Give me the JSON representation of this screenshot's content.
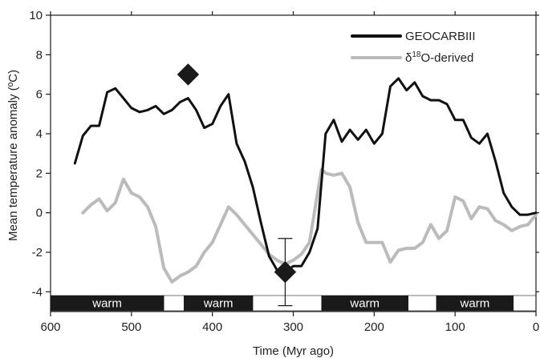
{
  "chart_data": {
    "type": "line",
    "xlabel": "Time (Myr ago)",
    "ylabel": "Mean temperature anomaly (ºC)",
    "xlim": [
      600,
      0
    ],
    "ylim": [
      -5,
      10
    ],
    "x_ticks": [
      600,
      500,
      400,
      300,
      200,
      100,
      0
    ],
    "y_ticks": [
      -4,
      -2,
      0,
      2,
      4,
      6,
      8,
      10
    ],
    "grid": false,
    "legend_position": "top-right",
    "series": [
      {
        "name": "GEOCARBIII",
        "color": "#111111",
        "x": [
          570,
          560,
          550,
          540,
          530,
          520,
          510,
          500,
          490,
          480,
          470,
          460,
          450,
          440,
          430,
          420,
          410,
          400,
          390,
          380,
          370,
          360,
          350,
          340,
          330,
          320,
          310,
          300,
          290,
          280,
          270,
          260,
          250,
          240,
          230,
          220,
          210,
          200,
          190,
          180,
          170,
          160,
          150,
          140,
          130,
          120,
          110,
          100,
          90,
          80,
          70,
          60,
          50,
          40,
          30,
          20,
          10,
          0
        ],
        "values": [
          2.5,
          3.9,
          4.4,
          4.4,
          6.1,
          6.3,
          5.8,
          5.3,
          5.1,
          5.2,
          5.4,
          5.0,
          5.2,
          5.6,
          5.8,
          5.2,
          4.3,
          4.5,
          5.4,
          6.0,
          3.5,
          2.6,
          1.3,
          -0.5,
          -2.2,
          -2.9,
          -3.0,
          -2.7,
          -2.7,
          -2.0,
          -0.8,
          4.0,
          4.7,
          3.6,
          4.2,
          3.7,
          4.2,
          3.5,
          4.0,
          6.4,
          6.8,
          6.2,
          6.6,
          5.9,
          5.7,
          5.7,
          5.5,
          4.7,
          4.7,
          3.8,
          3.5,
          4.0,
          2.6,
          1.0,
          0.3,
          -0.1,
          -0.1,
          0.0
        ]
      },
      {
        "name": "δ18O-derived",
        "legend_prefix": "δ",
        "legend_sup": "18",
        "legend_suffix": "O-derived",
        "color": "#bbbbbb",
        "x": [
          560,
          550,
          540,
          530,
          520,
          510,
          500,
          490,
          480,
          470,
          460,
          450,
          440,
          430,
          420,
          410,
          400,
          390,
          380,
          370,
          360,
          350,
          340,
          330,
          320,
          310,
          300,
          290,
          280,
          270,
          265,
          260,
          250,
          240,
          230,
          220,
          210,
          200,
          190,
          180,
          170,
          160,
          150,
          140,
          130,
          120,
          110,
          100,
          90,
          80,
          70,
          60,
          50,
          40,
          30,
          20,
          10,
          0
        ],
        "values": [
          0.0,
          0.4,
          0.7,
          0.1,
          0.5,
          1.7,
          1.0,
          0.8,
          0.3,
          -0.7,
          -2.8,
          -3.5,
          -3.2,
          -3.0,
          -2.7,
          -2.0,
          -1.5,
          -0.6,
          0.3,
          -0.1,
          -0.6,
          -1.1,
          -1.6,
          -2.1,
          -2.4,
          -2.6,
          -2.4,
          -2.1,
          -1.5,
          1.0,
          2.2,
          2.0,
          1.9,
          2.0,
          1.3,
          -0.5,
          -1.5,
          -1.5,
          -1.5,
          -2.5,
          -1.9,
          -1.8,
          -1.8,
          -1.5,
          -0.6,
          -1.3,
          -0.9,
          0.8,
          0.6,
          -0.3,
          0.3,
          0.2,
          -0.4,
          -0.6,
          -0.9,
          -0.7,
          -0.6,
          -0.1
        ]
      }
    ],
    "markers": [
      {
        "name": "diamond-marker-430",
        "x": 430,
        "y": 7.0
      },
      {
        "name": "diamond-marker-310",
        "x": 310,
        "y": -3.0,
        "error_low": -4.7,
        "error_high": -1.3
      }
    ],
    "periods": [
      {
        "label": "warm",
        "start": 600,
        "end": 460,
        "type": "warm"
      },
      {
        "label": "",
        "start": 460,
        "end": 435,
        "type": "cool"
      },
      {
        "label": "warm",
        "start": 435,
        "end": 350,
        "type": "warm"
      },
      {
        "label": "",
        "start": 350,
        "end": 265,
        "type": "cool"
      },
      {
        "label": "warm",
        "start": 265,
        "end": 158,
        "type": "warm"
      },
      {
        "label": "",
        "start": 158,
        "end": 123,
        "type": "cool"
      },
      {
        "label": "warm",
        "start": 123,
        "end": 28,
        "type": "warm"
      },
      {
        "label": "",
        "start": 28,
        "end": 0,
        "type": "cool"
      }
    ]
  }
}
